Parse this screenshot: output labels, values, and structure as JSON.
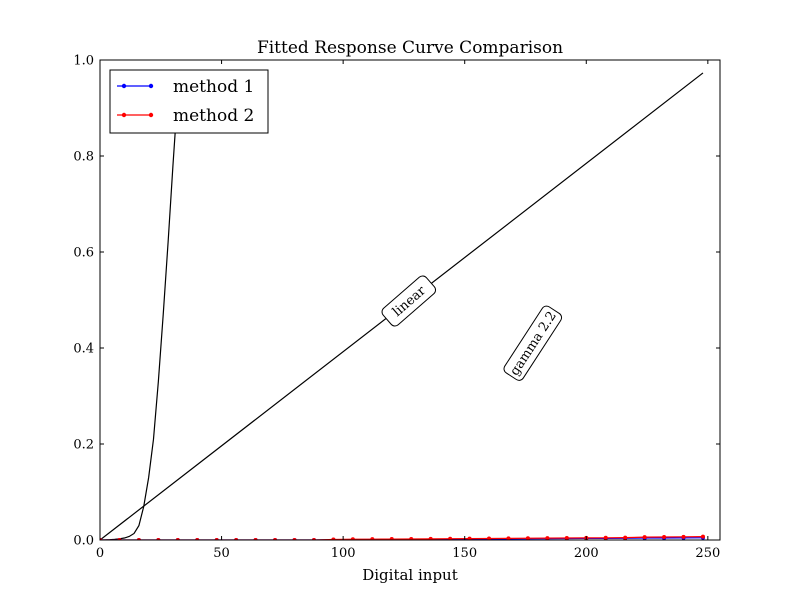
{
  "chart_data": {
    "type": "line",
    "title": "Fitted Response Curve Comparison",
    "xlabel": "Digital input",
    "ylabel": "",
    "xlim": [
      0,
      255
    ],
    "ylim": [
      0.0,
      1.0
    ],
    "x_ticks": [
      0,
      50,
      100,
      150,
      200,
      250
    ],
    "y_ticks": [
      0.0,
      0.2,
      0.4,
      0.6,
      0.8,
      1.0
    ],
    "x_tick_labels": [
      "0",
      "50",
      "100",
      "150",
      "200",
      "250"
    ],
    "y_tick_labels": [
      "0.0",
      "0.2",
      "0.4",
      "0.6",
      "0.8",
      "1.0"
    ],
    "grid": false,
    "legend_position": "upper-left",
    "reference_curves": [
      {
        "label": "linear",
        "x": [
          0,
          248
        ],
        "y": [
          0.0,
          0.973
        ]
      },
      {
        "label": "gamma 2.2",
        "x": [
          0,
          2,
          4,
          6,
          8,
          10,
          12,
          14,
          16,
          18,
          20,
          22,
          24,
          26,
          28,
          30,
          31
        ],
        "y": [
          0.0,
          0.0001,
          0.0005,
          0.0013,
          0.0025,
          0.0041,
          0.0074,
          0.0136,
          0.03,
          0.07,
          0.13,
          0.21,
          0.33,
          0.47,
          0.62,
          0.78,
          0.855
        ]
      }
    ],
    "annotations": [
      {
        "text": "linear",
        "x": 127,
        "y": 0.498,
        "rotation": -41
      },
      {
        "text": "gamma 2.2",
        "x": 178,
        "y": 0.41,
        "rotation": -57
      }
    ],
    "series": [
      {
        "name": "method 1",
        "color": "#0000ff",
        "x": [
          0,
          8,
          16,
          24,
          32,
          40,
          48,
          56,
          64,
          72,
          80,
          88,
          96,
          104,
          112,
          120,
          128,
          136,
          144,
          152,
          160,
          168,
          176,
          184,
          192,
          200,
          208,
          216,
          224,
          232,
          240,
          248
        ],
        "y": [
          0.0,
          0.0,
          0.0,
          0.0,
          0.0,
          0.0,
          0.0,
          0.0,
          0.0,
          0.0,
          0.0,
          0.0,
          0.0005,
          0.0008,
          0.001,
          0.0012,
          0.0014,
          0.0016,
          0.0018,
          0.002,
          0.0022,
          0.0024,
          0.0026,
          0.0028,
          0.003,
          0.0032,
          0.0034,
          0.0036,
          0.004,
          0.0042,
          0.0044,
          0.0046
        ]
      },
      {
        "name": "method 2",
        "color": "#ff0000",
        "x": [
          0,
          8,
          16,
          24,
          32,
          40,
          48,
          56,
          64,
          72,
          80,
          88,
          96,
          104,
          112,
          120,
          128,
          136,
          144,
          152,
          160,
          168,
          176,
          184,
          192,
          200,
          208,
          216,
          224,
          232,
          240,
          248
        ],
        "y": [
          0.0,
          0.0,
          0.0,
          0.0,
          0.0,
          0.0,
          0.0,
          0.0,
          0.0,
          0.0,
          0.0,
          0.0,
          0.001,
          0.0015,
          0.0017,
          0.002,
          0.0022,
          0.0024,
          0.0027,
          0.0029,
          0.0031,
          0.0034,
          0.0036,
          0.0039,
          0.0041,
          0.0044,
          0.0046,
          0.0049,
          0.006,
          0.0063,
          0.0066,
          0.007
        ]
      }
    ]
  }
}
